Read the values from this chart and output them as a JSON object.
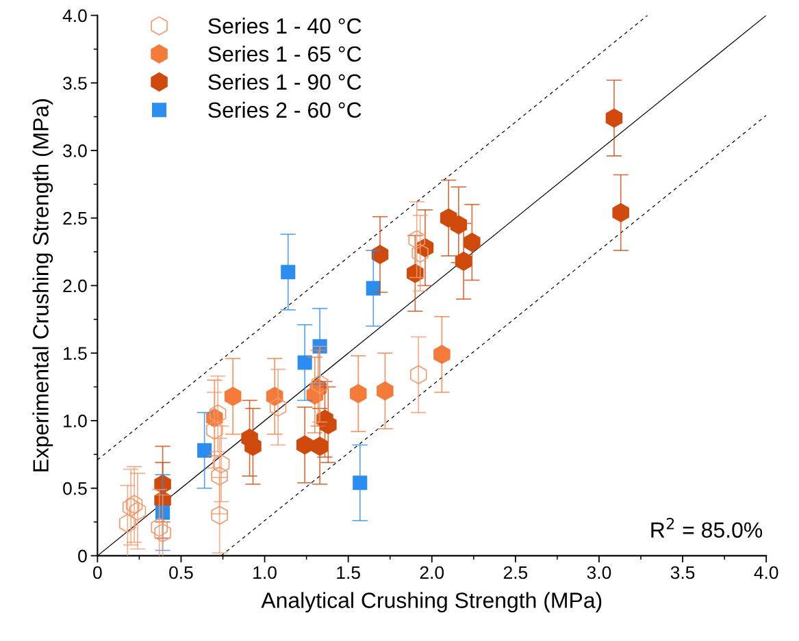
{
  "chart_data": {
    "type": "scatter",
    "xlabel": "Analytical Crushing Strength (MPa)",
    "ylabel": "Experimental Crushing Strength (MPa)",
    "xlim": [
      0,
      4.0
    ],
    "ylim": [
      0,
      4.0
    ],
    "xticks": [
      0,
      {
        "value": 0.5,
        "label": "0.5"
      },
      {
        "value": 1.0,
        "label": "1.0"
      },
      {
        "value": 1.5,
        "label": "1.5"
      },
      {
        "value": 2.0,
        "label": "2.0"
      },
      {
        "value": 2.5,
        "label": "2.5"
      },
      {
        "value": 3.0,
        "label": "3.0"
      },
      {
        "value": 3.5,
        "label": "3.5"
      },
      {
        "value": 4.0,
        "label": "4.0"
      }
    ],
    "yticks": [
      0,
      {
        "value": 0.5,
        "label": "0.5"
      },
      {
        "value": 1.0,
        "label": "1.0"
      },
      {
        "value": 1.5,
        "label": "1.5"
      },
      {
        "value": 2.0,
        "label": "2.0"
      },
      {
        "value": 2.5,
        "label": "2.5"
      },
      {
        "value": 3.0,
        "label": "3.0"
      },
      {
        "value": 3.5,
        "label": "3.5"
      },
      {
        "value": 4.0,
        "label": "4.0"
      }
    ],
    "grid": false,
    "legend": "top left",
    "annotations": [
      "R$^{2}$ = 85.0%"
    ],
    "series": [
      {
        "type": "line",
        "color": "#000000",
        "line_style": "solid",
        "marker": "none",
        "x": [
          0,
          4.0
        ],
        "values": [
          0,
          4.0
        ]
      },
      {
        "type": "line",
        "color": "#000000",
        "line_style": "dashed",
        "marker": "none",
        "x": [
          0,
          3.29
        ],
        "values": [
          0.71,
          4.0
        ]
      },
      {
        "type": "line",
        "color": "#000000",
        "line_style": "dashed",
        "marker": "none",
        "x": [
          0.74,
          4.0
        ],
        "values": [
          0,
          3.26
        ]
      },
      {
        "name": "Series 1 - 40 °C",
        "color": "#f29a6c",
        "x": [
          0.18,
          0.2,
          0.22,
          0.24,
          0.37,
          0.39,
          0.7,
          0.72,
          0.73,
          0.74,
          0.73,
          1.08,
          1.33,
          1.91,
          1.93,
          1.92
        ],
        "values": [
          0.24,
          0.36,
          0.38,
          0.33,
          0.21,
          0.17,
          0.93,
          1.05,
          0.59,
          0.68,
          0.3,
          1.1,
          1.27,
          2.34,
          2.24,
          1.34
        ],
        "errors": [
          0.28,
          0.28,
          0.28,
          0.28,
          0.28,
          0.28,
          0.28,
          0.28,
          0.28,
          0.28,
          0.28,
          0.28,
          0.28,
          0.28,
          0.28,
          0.28
        ]
      },
      {
        "name": "Series 1 - 65 °C",
        "color": "#f47b3a",
        "x": [
          0.7,
          0.81,
          1.06,
          1.3,
          1.32,
          1.56,
          1.72,
          2.06
        ],
        "values": [
          1.02,
          1.18,
          1.18,
          1.19,
          1.24,
          1.2,
          1.22,
          1.49
        ],
        "errors": [
          0.28,
          0.28,
          0.28,
          0.28,
          0.28,
          0.28,
          0.28,
          0.28
        ]
      },
      {
        "name": "Series 1 - 90 °C",
        "color": "#cf4a0c",
        "x": [
          0.39,
          0.39,
          0.91,
          0.93,
          1.24,
          1.33,
          1.36,
          1.38,
          1.69,
          1.9,
          1.96,
          2.1,
          2.16,
          2.19,
          2.24,
          3.09,
          3.13
        ],
        "values": [
          0.41,
          0.53,
          0.87,
          0.81,
          0.82,
          0.81,
          1.01,
          0.97,
          2.23,
          2.09,
          2.28,
          2.5,
          2.45,
          2.18,
          2.32,
          3.24,
          2.54
        ],
        "errors": [
          0.28,
          0.28,
          0.28,
          0.28,
          0.28,
          0.28,
          0.28,
          0.28,
          0.28,
          0.28,
          0.28,
          0.28,
          0.28,
          0.28,
          0.28,
          0.28,
          0.28
        ]
      },
      {
        "name": "Series 2 - 60 °C",
        "color": "#2b8def",
        "marker": "square",
        "x": [
          0.39,
          0.64,
          1.14,
          1.24,
          1.33,
          1.57,
          1.65
        ],
        "values": [
          0.32,
          0.78,
          2.1,
          1.43,
          1.55,
          0.54,
          1.98
        ],
        "errors": [
          0.28,
          0.28,
          0.28,
          0.28,
          0.28,
          0.28,
          0.28
        ]
      }
    ]
  }
}
